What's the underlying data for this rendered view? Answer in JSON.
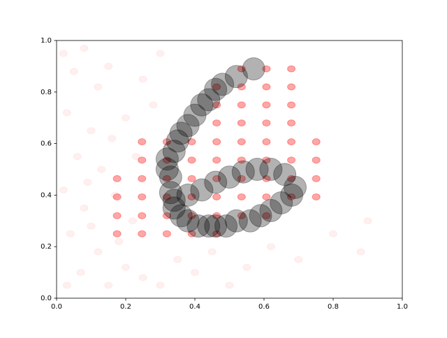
{
  "chart_data": {
    "type": "scatter",
    "xlim": [
      0,
      1
    ],
    "ylim": [
      0,
      1
    ],
    "xticks": [
      {
        "value": 0,
        "label": "0.0"
      },
      0.2,
      0.4,
      0.6,
      0.8,
      {
        "value": 1,
        "label": "1.0"
      }
    ],
    "yticks": [
      {
        "value": 0,
        "label": "0.0"
      },
      0.2,
      0.4,
      0.6,
      0.8,
      {
        "value": 1,
        "label": "1.0"
      }
    ],
    "series": [
      {
        "color": "#ff0000",
        "alpha": 0.06,
        "x": [
          0.02,
          0.05,
          0.08,
          0.12,
          0.03,
          0.15,
          0.1,
          0.06,
          0.13,
          0.02,
          0.08,
          0.04,
          0.12,
          0.07,
          0.15,
          0.2,
          0.18,
          0.25,
          0.22,
          0.1,
          0.17,
          0.2,
          0.25,
          0.3,
          0.28,
          0.35,
          0.4,
          0.45,
          0.55,
          0.62,
          0.7,
          0.8,
          0.88,
          0.9,
          0.03,
          0.16,
          0.23,
          0.09,
          0.3,
          0.5
        ],
        "values": [
          0.95,
          0.88,
          0.97,
          0.82,
          0.72,
          0.9,
          0.65,
          0.55,
          0.5,
          0.42,
          0.35,
          0.25,
          0.18,
          0.1,
          0.05,
          0.12,
          0.22,
          0.08,
          0.3,
          0.28,
          0.4,
          0.7,
          0.85,
          0.95,
          0.75,
          0.15,
          0.1,
          0.18,
          0.12,
          0.2,
          0.15,
          0.25,
          0.18,
          0.3,
          0.05,
          0.62,
          0.55,
          0.45,
          0.05,
          0.05
        ]
      },
      {
        "color": "#ff0000",
        "alpha": 0.35,
        "x": [
          0.175,
          0.247,
          0.319,
          0.391,
          0.463,
          0.175,
          0.247,
          0.319,
          0.391,
          0.463,
          0.535,
          0.607,
          0.175,
          0.247,
          0.319,
          0.391,
          0.463,
          0.535,
          0.607,
          0.679,
          0.751,
          0.175,
          0.247,
          0.319,
          0.391,
          0.463,
          0.535,
          0.607,
          0.679,
          0.751,
          0.247,
          0.319,
          0.391,
          0.463,
          0.535,
          0.607,
          0.679,
          0.751,
          0.247,
          0.319,
          0.391,
          0.463,
          0.535,
          0.607,
          0.679,
          0.751,
          0.463,
          0.535,
          0.607,
          0.679,
          0.463,
          0.535,
          0.607,
          0.679,
          0.463,
          0.535,
          0.607,
          0.679,
          0.535,
          0.607,
          0.679
        ],
        "values": [
          0.25,
          0.25,
          0.25,
          0.25,
          0.25,
          0.32,
          0.32,
          0.32,
          0.32,
          0.32,
          0.32,
          0.32,
          0.393,
          0.393,
          0.393,
          0.393,
          0.393,
          0.393,
          0.393,
          0.393,
          0.393,
          0.464,
          0.464,
          0.464,
          0.464,
          0.464,
          0.464,
          0.464,
          0.464,
          0.464,
          0.536,
          0.536,
          0.536,
          0.536,
          0.536,
          0.536,
          0.536,
          0.536,
          0.607,
          0.607,
          0.607,
          0.607,
          0.607,
          0.607,
          0.607,
          0.607,
          0.68,
          0.68,
          0.68,
          0.68,
          0.75,
          0.75,
          0.75,
          0.75,
          0.82,
          0.82,
          0.82,
          0.82,
          0.89,
          0.89,
          0.89
        ]
      },
      {
        "color": "#000000",
        "alpha": 0.3,
        "x": [
          0.57,
          0.52,
          0.48,
          0.46,
          0.44,
          0.42,
          0.4,
          0.38,
          0.36,
          0.35,
          0.34,
          0.32,
          0.32,
          0.33,
          0.33,
          0.34,
          0.34,
          0.36,
          0.38,
          0.41,
          0.44,
          0.46,
          0.49,
          0.52,
          0.56,
          0.59,
          0.62,
          0.65,
          0.68,
          0.69,
          0.66,
          0.62,
          0.58,
          0.54,
          0.5,
          0.46,
          0.42,
          0.38
        ],
        "values": [
          0.89,
          0.86,
          0.83,
          0.81,
          0.77,
          0.75,
          0.71,
          0.67,
          0.64,
          0.61,
          0.57,
          0.54,
          0.5,
          0.47,
          0.41,
          0.38,
          0.35,
          0.32,
          0.3,
          0.28,
          0.28,
          0.28,
          0.28,
          0.3,
          0.3,
          0.32,
          0.34,
          0.37,
          0.4,
          0.43,
          0.48,
          0.5,
          0.5,
          0.49,
          0.47,
          0.45,
          0.42,
          0.4
        ]
      }
    ]
  }
}
